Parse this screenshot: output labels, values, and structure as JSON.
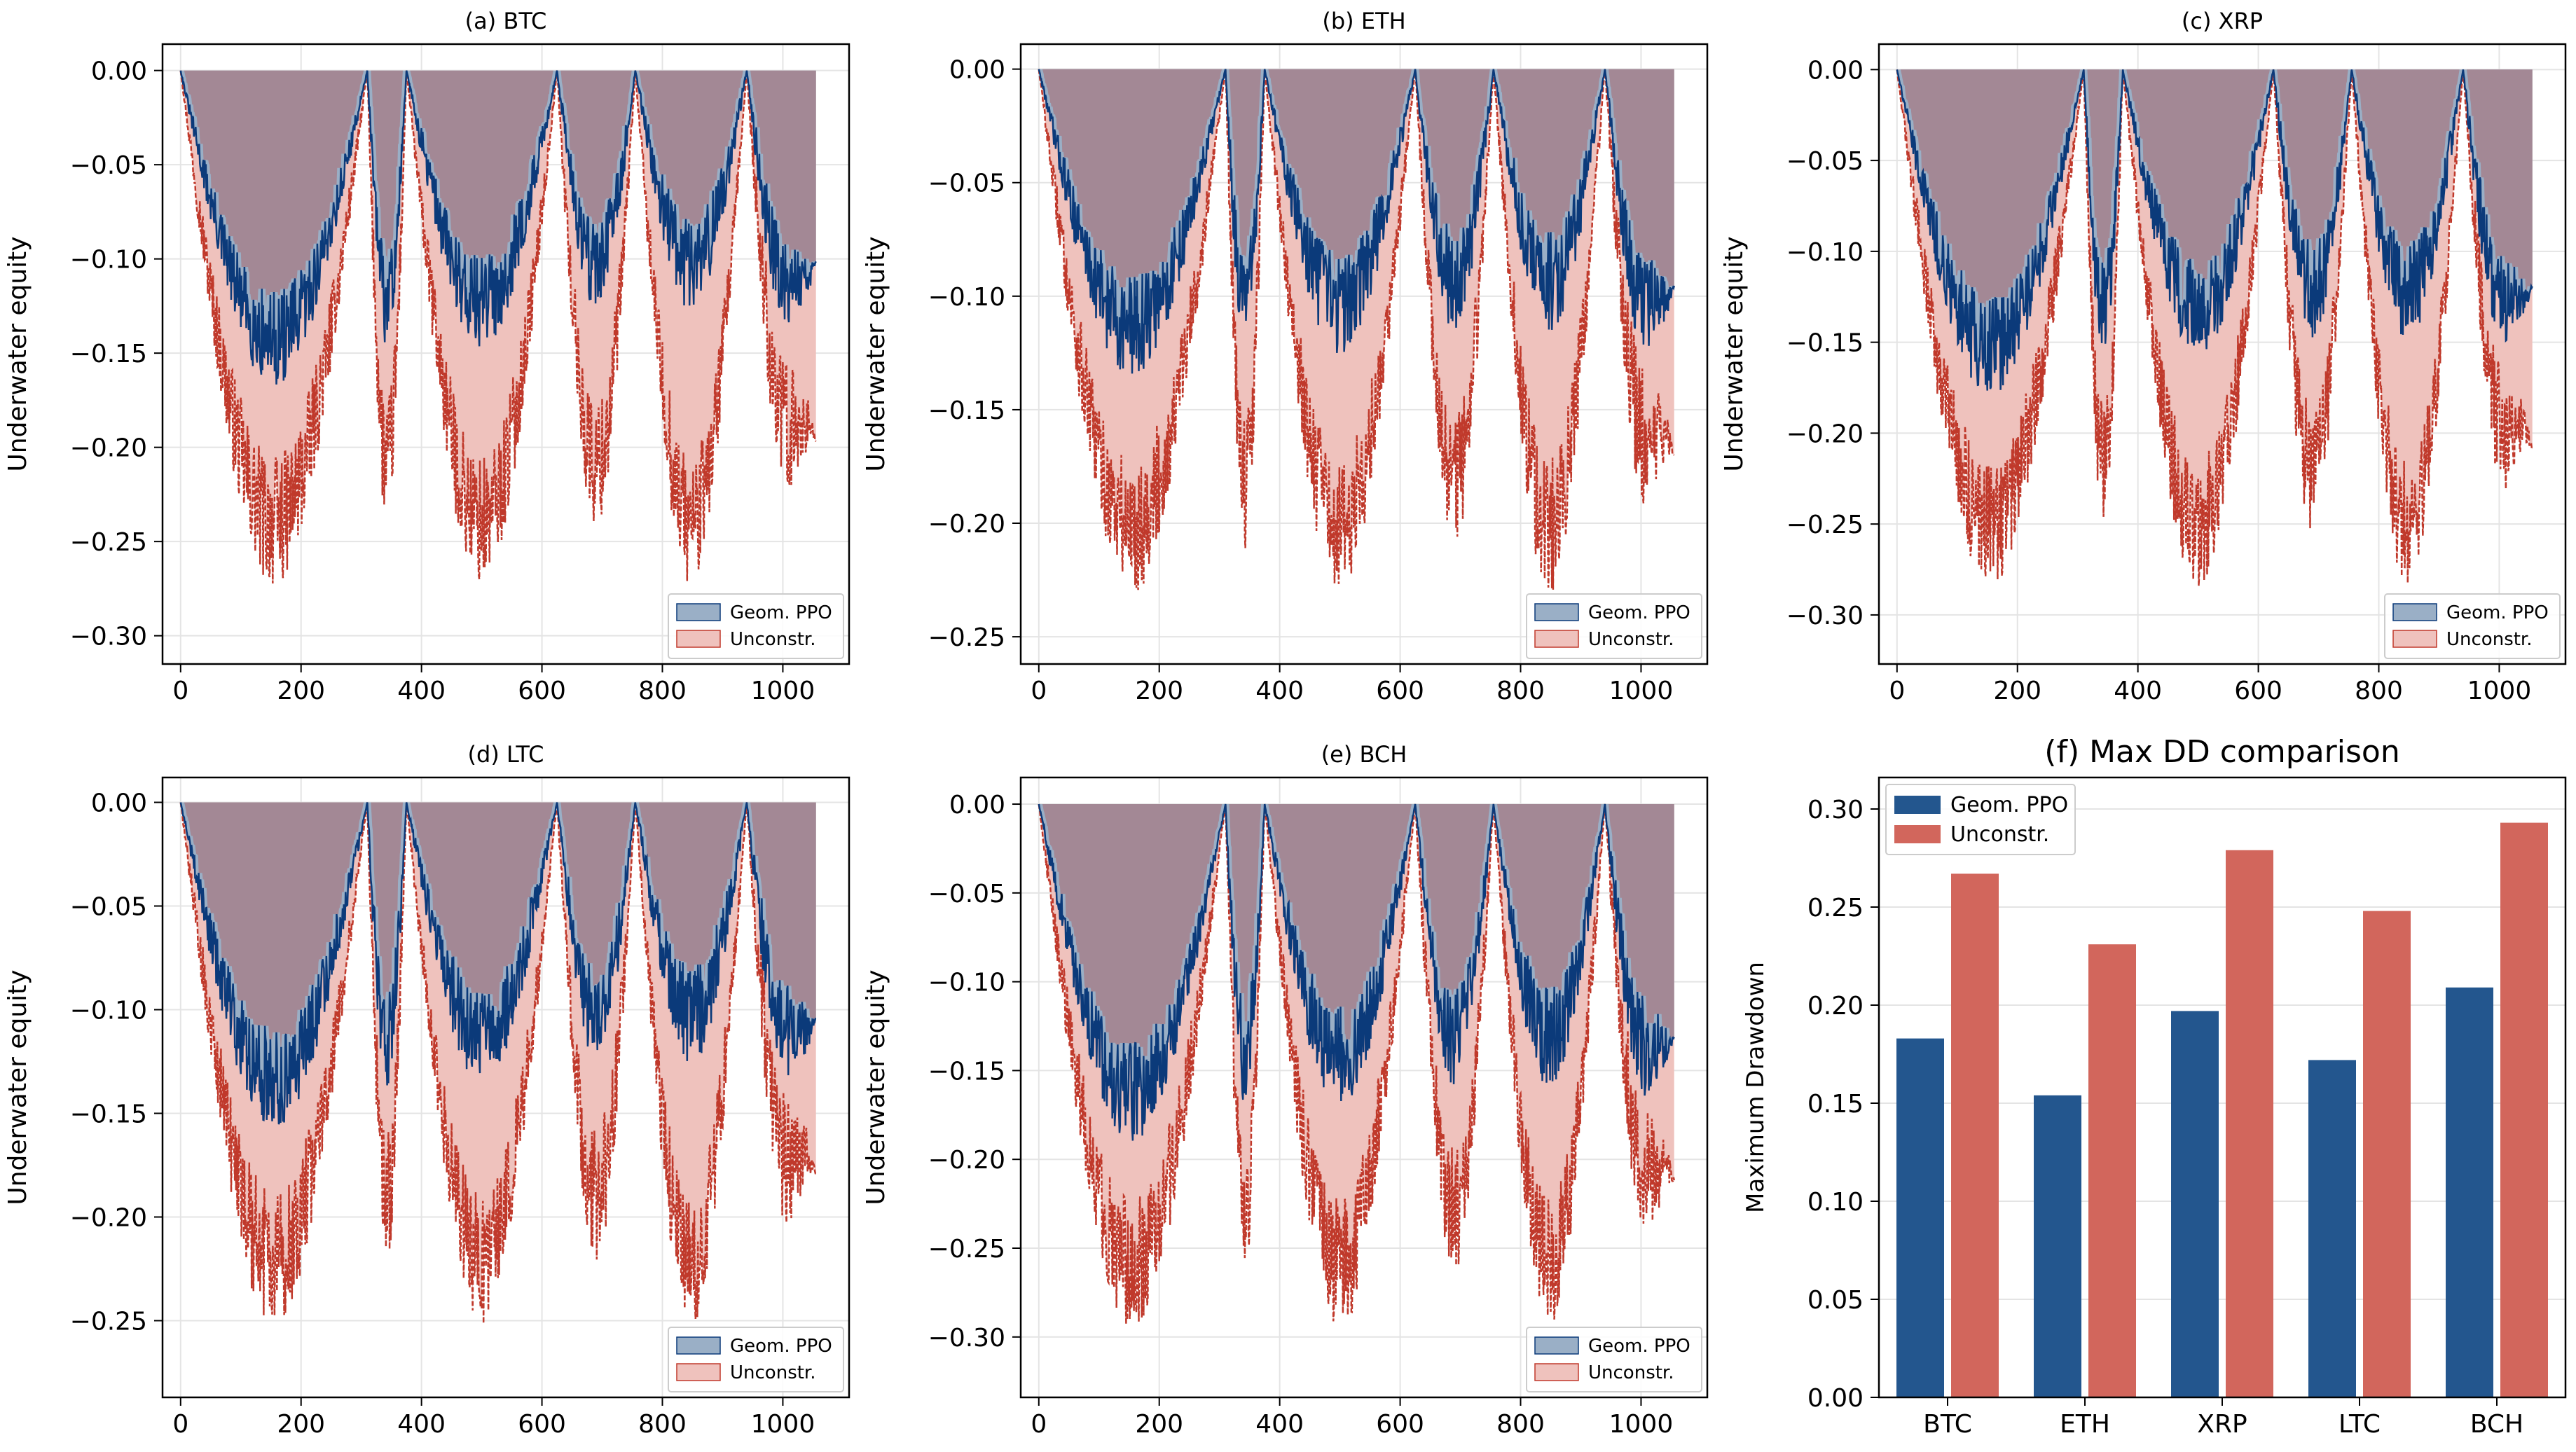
{
  "colors": {
    "geom": "#0b3a7a",
    "geom_fill": "#9aafc6",
    "unc": "#c0392b",
    "unc_fill": "#efc2bd",
    "overlap_fill": "#a38895",
    "bar_geom": "#23568e",
    "bar_unc": "#d2665c"
  },
  "legend": {
    "geom": "Geom. PPO",
    "unc": "Unconstr."
  },
  "chart_data": [
    {
      "type": "area",
      "title": "(a) BTC",
      "ylabel": "Underwater equity",
      "xlim": [
        -30,
        1110
      ],
      "ylim": [
        -0.315,
        0.014
      ],
      "xticks": [
        0,
        200,
        400,
        600,
        800,
        1000
      ],
      "yticks": [
        0.0,
        -0.05,
        -0.1,
        -0.15,
        -0.2,
        -0.25,
        -0.3
      ],
      "peaks": [
        0,
        310,
        375,
        625,
        755,
        940,
        1055
      ],
      "series": [
        {
          "key": "geom",
          "name": "Geom. PPO",
          "troughs": [
            -0.15,
            -0.13,
            -0.13,
            -0.11,
            -0.11,
            -0.13
          ],
          "noise": 0.025,
          "end": -0.08
        },
        {
          "key": "unc",
          "name": "Unconstr.",
          "troughs": [
            -0.25,
            -0.22,
            -0.25,
            -0.22,
            -0.25,
            -0.22
          ],
          "noise": 0.035,
          "end": -0.22
        }
      ],
      "legend": "lower right"
    },
    {
      "type": "area",
      "title": "(b) ETH",
      "ylabel": "Underwater equity",
      "xlim": [
        -30,
        1110
      ],
      "ylim": [
        -0.262,
        0.011
      ],
      "xticks": [
        0,
        200,
        400,
        600,
        800,
        1000
      ],
      "yticks": [
        0.0,
        -0.05,
        -0.1,
        -0.15,
        -0.2,
        -0.25
      ],
      "peaks": [
        0,
        310,
        375,
        625,
        755,
        940,
        1055
      ],
      "series": [
        {
          "key": "geom",
          "name": "Geom. PPO",
          "troughs": [
            -0.12,
            -0.11,
            -0.11,
            -0.1,
            -0.1,
            -0.12
          ],
          "noise": 0.022,
          "end": -0.08
        },
        {
          "key": "unc",
          "name": "Unconstr.",
          "troughs": [
            -0.21,
            -0.19,
            -0.21,
            -0.19,
            -0.21,
            -0.19
          ],
          "noise": 0.03,
          "end": -0.19
        }
      ],
      "legend": "lower right"
    },
    {
      "type": "area",
      "title": "(c) XRP",
      "ylabel": "Underwater equity",
      "xlim": [
        -30,
        1110
      ],
      "ylim": [
        -0.327,
        0.014
      ],
      "xticks": [
        0,
        200,
        400,
        600,
        800,
        1000
      ],
      "yticks": [
        0.0,
        -0.05,
        -0.1,
        -0.15,
        -0.2,
        -0.25,
        -0.3
      ],
      "peaks": [
        0,
        310,
        375,
        625,
        755,
        940,
        1055
      ],
      "series": [
        {
          "key": "geom",
          "name": "Geom. PPO",
          "troughs": [
            -0.16,
            -0.14,
            -0.14,
            -0.13,
            -0.13,
            -0.15
          ],
          "noise": 0.027,
          "end": -0.1
        },
        {
          "key": "unc",
          "name": "Unconstr.",
          "troughs": [
            -0.26,
            -0.23,
            -0.26,
            -0.23,
            -0.26,
            -0.23
          ],
          "noise": 0.035,
          "end": -0.24
        }
      ],
      "legend": "lower right"
    },
    {
      "type": "area",
      "title": "(d) LTC",
      "ylabel": "Underwater equity",
      "xlim": [
        -30,
        1110
      ],
      "ylim": [
        -0.287,
        0.012
      ],
      "xticks": [
        0,
        200,
        400,
        600,
        800,
        1000
      ],
      "yticks": [
        0.0,
        -0.05,
        -0.1,
        -0.15,
        -0.2,
        -0.25
      ],
      "peaks": [
        0,
        310,
        375,
        625,
        755,
        940,
        1055
      ],
      "series": [
        {
          "key": "geom",
          "name": "Geom. PPO",
          "troughs": [
            -0.14,
            -0.12,
            -0.12,
            -0.11,
            -0.11,
            -0.13
          ],
          "noise": 0.024,
          "end": -0.09
        },
        {
          "key": "unc",
          "name": "Unconstr.",
          "troughs": [
            -0.23,
            -0.2,
            -0.23,
            -0.2,
            -0.23,
            -0.2
          ],
          "noise": 0.032,
          "end": -0.2
        }
      ],
      "legend": "lower right"
    },
    {
      "type": "area",
      "title": "(e) BCH",
      "ylabel": "Underwater equity",
      "xlim": [
        -30,
        1110
      ],
      "ylim": [
        -0.334,
        0.015
      ],
      "xticks": [
        0,
        200,
        400,
        600,
        800,
        1000
      ],
      "yticks": [
        0.0,
        -0.05,
        -0.1,
        -0.15,
        -0.2,
        -0.25,
        -0.3
      ],
      "peaks": [
        0,
        310,
        375,
        625,
        755,
        940,
        1055
      ],
      "series": [
        {
          "key": "geom",
          "name": "Geom. PPO",
          "troughs": [
            -0.17,
            -0.15,
            -0.15,
            -0.14,
            -0.14,
            -0.16
          ],
          "noise": 0.028,
          "end": -0.12
        },
        {
          "key": "unc",
          "name": "Unconstr.",
          "troughs": [
            -0.27,
            -0.24,
            -0.27,
            -0.24,
            -0.27,
            -0.24
          ],
          "noise": 0.037,
          "end": -0.23
        }
      ],
      "legend": "lower right"
    },
    {
      "type": "bar",
      "title": "(f) Max DD comparison",
      "ylabel": "Maximum Drawdown",
      "categories": [
        "BTC",
        "ETH",
        "XRP",
        "LTC",
        "BCH"
      ],
      "ylim": [
        0,
        0.3
      ],
      "yticks": [
        0.0,
        0.05,
        0.1,
        0.15,
        0.2,
        0.25,
        0.3
      ],
      "series": [
        {
          "key": "geom",
          "name": "Geom. PPO",
          "values": [
            0.183,
            0.154,
            0.197,
            0.172,
            0.209
          ]
        },
        {
          "key": "unc",
          "name": "Unconstr.",
          "values": [
            0.267,
            0.231,
            0.279,
            0.248,
            0.293
          ]
        }
      ],
      "legend": "upper left"
    }
  ]
}
